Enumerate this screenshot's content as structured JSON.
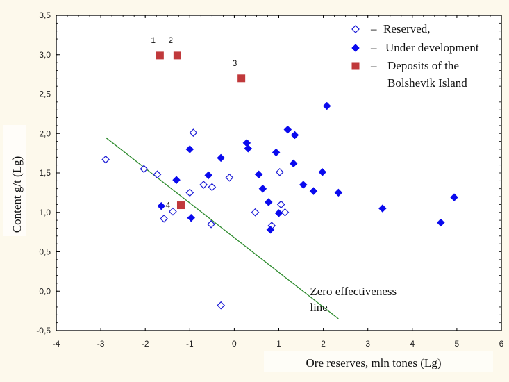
{
  "chart_data": {
    "type": "scatter",
    "title": "",
    "xlabel": "Ore reserves, mln tones (Lg)",
    "ylabel": "Content g/t  (Lg)",
    "xlim": [
      -4,
      6
    ],
    "ylim": [
      -0.5,
      3.5
    ],
    "x_ticks": [
      -4,
      -3,
      -2,
      -1,
      0,
      1,
      2,
      3,
      4,
      5,
      6
    ],
    "x_tick_labels": [
      "-4",
      "-3",
      "-2",
      "-1",
      "0",
      "1",
      "2",
      "3",
      "4",
      "5",
      "6"
    ],
    "y_ticks": [
      -0.5,
      0,
      0.5,
      1,
      1.5,
      2,
      2.5,
      3,
      3.5
    ],
    "y_tick_labels": [
      "-0,5",
      "0,0",
      "0,5",
      "1,0",
      "1,5",
      "2,0",
      "2,5",
      "3,0",
      "3,5"
    ],
    "grid": false,
    "legend_position": "top-right",
    "series": [
      {
        "name": "Reserved,",
        "legend_prefix": "–",
        "marker": "open-diamond",
        "color": "#1a1ad6",
        "points": [
          [
            -2.89,
            1.67
          ],
          [
            -2.03,
            1.55
          ],
          [
            -1.73,
            1.48
          ],
          [
            -0.92,
            2.01
          ],
          [
            -1.0,
            1.25
          ],
          [
            -0.69,
            1.35
          ],
          [
            -0.5,
            1.32
          ],
          [
            -0.11,
            1.44
          ],
          [
            -1.38,
            1.01
          ],
          [
            -1.58,
            0.92
          ],
          [
            -0.52,
            0.85
          ],
          [
            0.47,
            1.0
          ],
          [
            1.02,
            1.51
          ],
          [
            1.05,
            1.1
          ],
          [
            1.14,
            1.0
          ],
          [
            0.84,
            0.83
          ],
          [
            -0.3,
            -0.18
          ]
        ]
      },
      {
        "name": "Under development",
        "legend_prefix": "–",
        "marker": "filled-diamond",
        "color": "#0a0aee",
        "points": [
          [
            -1.64,
            1.08
          ],
          [
            -1.3,
            1.41
          ],
          [
            -1.0,
            1.8
          ],
          [
            -0.97,
            0.93
          ],
          [
            -0.58,
            1.47
          ],
          [
            -0.3,
            1.69
          ],
          [
            0.28,
            1.88
          ],
          [
            0.31,
            1.81
          ],
          [
            0.55,
            1.48
          ],
          [
            0.64,
            1.3
          ],
          [
            0.77,
            1.13
          ],
          [
            1.0,
            0.99
          ],
          [
            0.81,
            0.78
          ],
          [
            0.94,
            1.76
          ],
          [
            1.2,
            2.05
          ],
          [
            1.36,
            1.98
          ],
          [
            1.33,
            1.62
          ],
          [
            1.55,
            1.35
          ],
          [
            1.78,
            1.27
          ],
          [
            1.98,
            1.51
          ],
          [
            2.08,
            2.35
          ],
          [
            2.34,
            1.25
          ],
          [
            3.33,
            1.05
          ],
          [
            4.64,
            0.87
          ],
          [
            4.94,
            1.19
          ]
        ]
      },
      {
        "name": "Deposits of the Bolshevik Island",
        "name_lines": [
          "Deposits of the",
          "Bolshevik Island"
        ],
        "legend_prefix": "–",
        "marker": "filled-square",
        "color": "#c0393b",
        "points": [
          [
            -1.67,
            2.99
          ],
          [
            -1.28,
            2.99
          ],
          [
            0.16,
            2.7
          ],
          [
            -1.2,
            1.09
          ]
        ],
        "point_labels": [
          "1",
          "2",
          "3",
          "4"
        ]
      }
    ],
    "lines": [
      {
        "name": "Zero effectiveness line",
        "color": "#2e8b2e",
        "from": [
          -2.89,
          1.95
        ],
        "to": [
          2.34,
          -0.35
        ]
      }
    ],
    "annotations": [
      {
        "text_lines": [
          "Zero effectiveness",
          "line"
        ],
        "x": 1.7,
        "y": -0.05
      }
    ]
  }
}
